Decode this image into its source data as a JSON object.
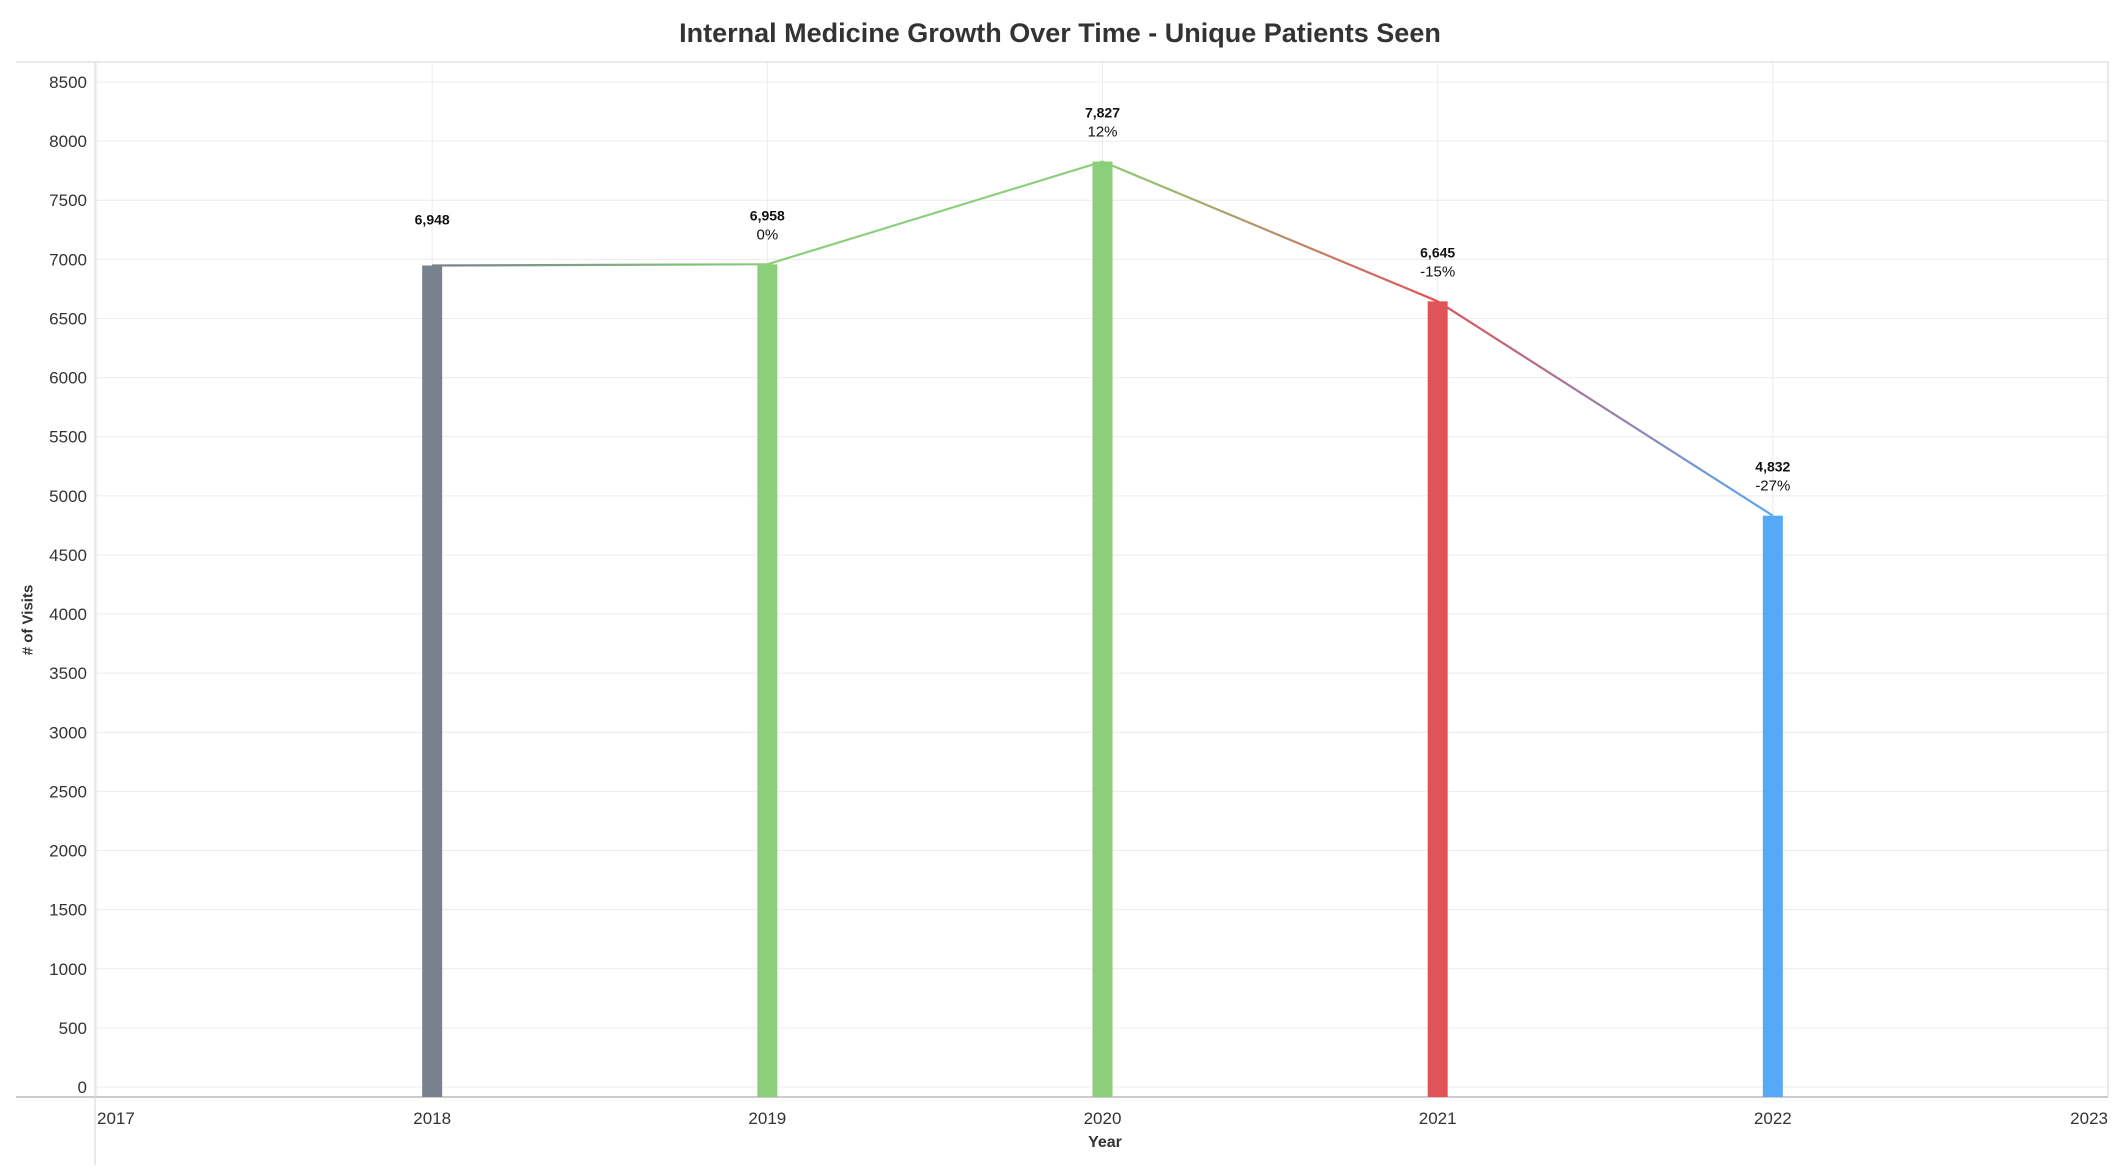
{
  "chart_data": {
    "type": "bar",
    "title": "Internal Medicine Growth Over Time - Unique Patients Seen",
    "xlabel": "Year",
    "ylabel": "# of Visits",
    "x_ticks": [
      "2017",
      "2018",
      "2019",
      "2020",
      "2021",
      "2022",
      "2023"
    ],
    "xlim": [
      2017,
      2023
    ],
    "y_ticks": [
      0,
      500,
      1000,
      1500,
      2000,
      2500,
      3000,
      3500,
      4000,
      4500,
      5000,
      5500,
      6000,
      6500,
      7000,
      7500,
      8000,
      8500
    ],
    "ylim": [
      0,
      8500
    ],
    "grid": true,
    "connecting_line": true,
    "bars": [
      {
        "year": 2018,
        "value": 6948,
        "value_label": "6,948",
        "pct_label": "",
        "color": "#78818d"
      },
      {
        "year": 2019,
        "value": 6958,
        "value_label": "6,958",
        "pct_label": "0%",
        "color": "#8ccf7a"
      },
      {
        "year": 2020,
        "value": 7827,
        "value_label": "7,827",
        "pct_label": "12%",
        "color": "#8ccf7a"
      },
      {
        "year": 2021,
        "value": 6645,
        "value_label": "6,645",
        "pct_label": "-15%",
        "color": "#e05357"
      },
      {
        "year": 2022,
        "value": 4832,
        "value_label": "4,832",
        "pct_label": "-27%",
        "color": "#56a9f6"
      }
    ]
  }
}
